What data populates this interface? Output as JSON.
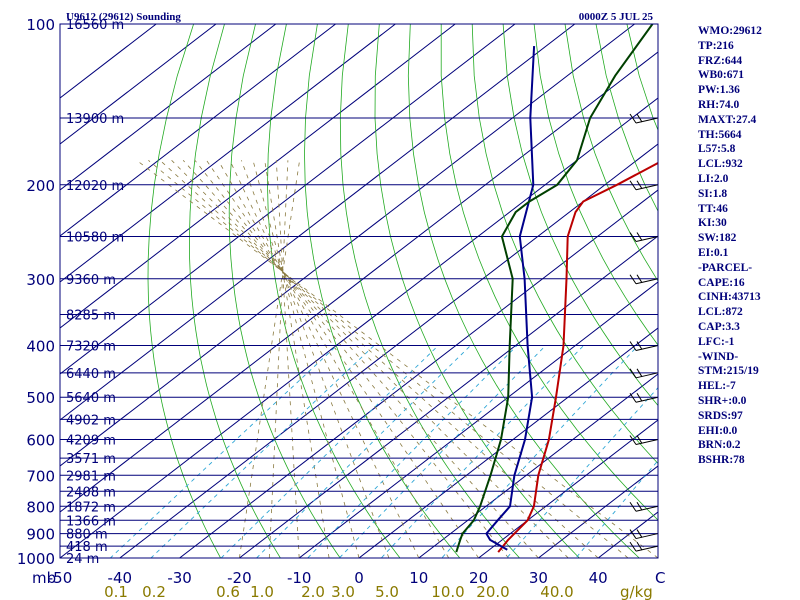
{
  "header": {
    "title": "U9612 (29612) Sounding",
    "time": "0000Z  5 JUL 25"
  },
  "chart_data": {
    "type": "line",
    "skew_t": true,
    "pressure_ticks": [
      100,
      200,
      300,
      400,
      500,
      600,
      700,
      800,
      900,
      1000
    ],
    "ylim": [
      1000,
      100
    ],
    "y_scale": "log",
    "temperature_ticks": [
      -50,
      -40,
      -30,
      -20,
      -10,
      0,
      10,
      20,
      30,
      40
    ],
    "xlim": [
      -50,
      50
    ],
    "x_unit_label": "C",
    "y_unit_label": "mb",
    "mixing_ratio_ticks": [
      "0.1",
      "0.2",
      "0.6",
      "1.0",
      "2.0",
      "3.0",
      "5.0",
      "10.0",
      "20.0",
      "40.0"
    ],
    "mixing_ratio_unit": "g/kg",
    "height_labels": [
      {
        "p": 100,
        "label": "16560 m"
      },
      {
        "p": 150,
        "label": "13900 m"
      },
      {
        "p": 200,
        "label": "12020 m"
      },
      {
        "p": 250,
        "label": "10580 m"
      },
      {
        "p": 300,
        "label": "9360 m"
      },
      {
        "p": 350,
        "label": "8285 m"
      },
      {
        "p": 400,
        "label": "7320 m"
      },
      {
        "p": 450,
        "label": "6440 m"
      },
      {
        "p": 500,
        "label": "5640 m"
      },
      {
        "p": 550,
        "label": "4902 m"
      },
      {
        "p": 600,
        "label": "4209 m"
      },
      {
        "p": 650,
        "label": "3571 m"
      },
      {
        "p": 700,
        "label": "2981 m"
      },
      {
        "p": 750,
        "label": "2408 m"
      },
      {
        "p": 800,
        "label": "1872 m"
      },
      {
        "p": 850,
        "label": "1366 m"
      },
      {
        "p": 900,
        "label": "880 m"
      },
      {
        "p": 950,
        "label": "418 m"
      },
      {
        "p": 1000,
        "label": "24 m"
      }
    ],
    "series": [
      {
        "name": "",
        "color": "#bb0000",
        "points": [
          {
            "p": 975,
            "t": 22
          },
          {
            "p": 925,
            "t": 21
          },
          {
            "p": 850,
            "t": 20
          },
          {
            "p": 800,
            "t": 18
          },
          {
            "p": 700,
            "t": 12
          },
          {
            "p": 600,
            "t": 6
          },
          {
            "p": 500,
            "t": -2
          },
          {
            "p": 400,
            "t": -12
          },
          {
            "p": 300,
            "t": -26
          },
          {
            "p": 250,
            "t": -35
          },
          {
            "p": 225,
            "t": -39
          },
          {
            "p": 215,
            "t": -40
          },
          {
            "p": 200,
            "t": -38
          },
          {
            "p": 175,
            "t": -35
          },
          {
            "p": 150,
            "t": -35
          },
          {
            "p": 125,
            "t": -37
          },
          {
            "p": 100,
            "t": -43
          }
        ]
      },
      {
        "name": "",
        "color": "#00008b",
        "points": [
          {
            "p": 965,
            "t": 23
          },
          {
            "p": 925,
            "t": 18
          },
          {
            "p": 900,
            "t": 16
          },
          {
            "p": 850,
            "t": 15
          },
          {
            "p": 800,
            "t": 14
          },
          {
            "p": 700,
            "t": 8
          },
          {
            "p": 600,
            "t": 2
          },
          {
            "p": 500,
            "t": -6
          },
          {
            "p": 400,
            "t": -18
          },
          {
            "p": 300,
            "t": -33
          },
          {
            "p": 250,
            "t": -43
          },
          {
            "p": 200,
            "t": -52
          },
          {
            "p": 150,
            "t": -67
          },
          {
            "p": 110,
            "t": -82
          }
        ]
      },
      {
        "name": "",
        "color": "#004000",
        "points": [
          {
            "p": 975,
            "t": 15
          },
          {
            "p": 925,
            "t": 13
          },
          {
            "p": 900,
            "t": 12
          },
          {
            "p": 850,
            "t": 11
          },
          {
            "p": 800,
            "t": 9
          },
          {
            "p": 700,
            "t": 4
          },
          {
            "p": 600,
            "t": -2
          },
          {
            "p": 500,
            "t": -10
          },
          {
            "p": 400,
            "t": -21
          },
          {
            "p": 300,
            "t": -35
          },
          {
            "p": 250,
            "t": -46
          },
          {
            "p": 225,
            "t": -49
          },
          {
            "p": 215,
            "t": -49
          },
          {
            "p": 200,
            "t": -48
          },
          {
            "p": 180,
            "t": -50
          },
          {
            "p": 150,
            "t": -57
          },
          {
            "p": 125,
            "t": -62
          },
          {
            "p": 100,
            "t": -67
          }
        ]
      }
    ],
    "wind_barb_pressures": [
      150,
      200,
      250,
      300,
      400,
      450,
      500,
      600,
      800,
      900,
      950
    ]
  },
  "side_panel": [
    "WMO:29612",
    "TP:216",
    "FRZ:644",
    "WB0:671",
    "PW:1.36",
    "RH:74.0",
    "MAXT:27.4",
    "TH:5664",
    "L57:5.8",
    "LCL:932",
    "LI:2.0",
    "SI:1.8",
    "TT:46",
    "KI:30",
    "SW:182",
    "EI:0.1",
    "-PARCEL-",
    "CAPE:16",
    "CINH:43713",
    "LCL:872",
    "CAP:3.3",
    "LFC:-1",
    "-WIND-",
    "STM:215/19",
    "HEL:-7",
    "SHR+:0.0",
    "SRDS:97",
    "EHI:0.0",
    "BRN:0.2",
    "BSHR:78"
  ]
}
